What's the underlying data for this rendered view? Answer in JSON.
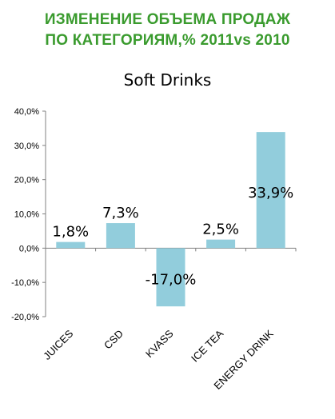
{
  "heading": {
    "line1": "ИЗМЕНЕНИЕ ОБЪЕМА ПРОДАЖ",
    "line2": "ПО КАТЕГОРИЯМ,% 2011vs 2010",
    "color": "#3a9b2e"
  },
  "chart_data": {
    "type": "bar",
    "title": "Soft Drinks",
    "categories": [
      "JUICES",
      "CSD",
      "KVASS",
      "ICE TEA",
      "ENERGY DRINK"
    ],
    "values": [
      1.8,
      7.3,
      -17.0,
      2.5,
      33.9
    ],
    "data_labels": [
      "1,8%",
      "7,3%",
      "-17,0%",
      "2,5%",
      "33,9%"
    ],
    "yticks": [
      40,
      30,
      20,
      10,
      0,
      -10,
      -20
    ],
    "ytick_labels": [
      "40,0%",
      "30,0%",
      "20,0%",
      "10,0%",
      "0,0%",
      "-10,0%",
      "-20,0%"
    ],
    "ylim": [
      -20,
      40
    ],
    "xlabel": "",
    "ylabel": "",
    "grid": false,
    "legend": "none",
    "bar_color": "#92cddc",
    "axis_color": "#808080"
  }
}
